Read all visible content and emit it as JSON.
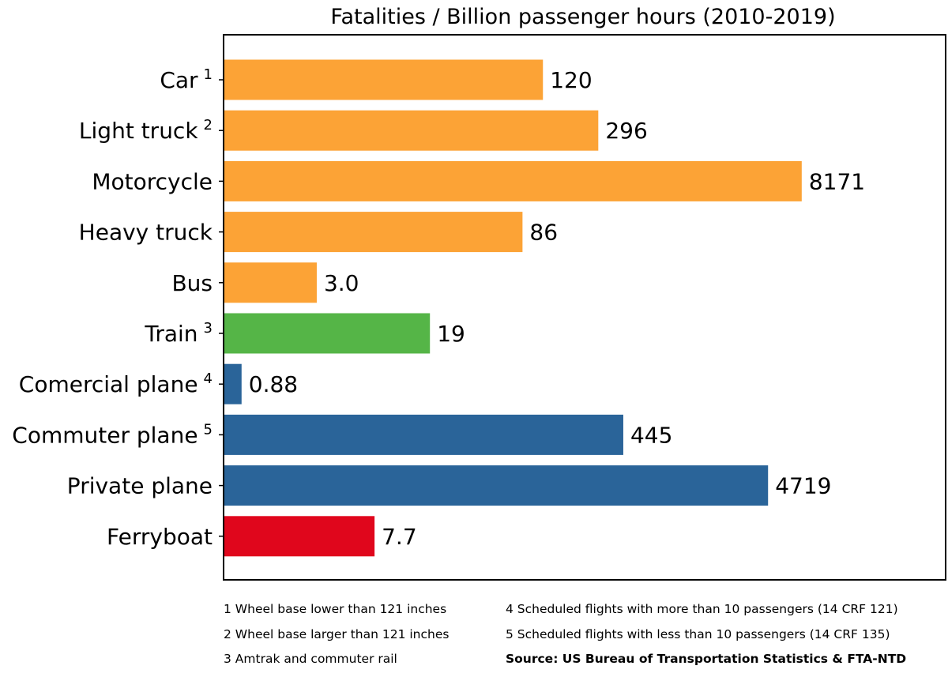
{
  "chart_data": {
    "type": "bar",
    "orientation": "horizontal",
    "title": "Fatalities / Billion passenger hours (2010-2019)",
    "xlabel": "",
    "ylabel": "",
    "x_scale": "log",
    "grid": false,
    "categories": [
      {
        "label": "Car",
        "sup": "1"
      },
      {
        "label": "Light truck",
        "sup": "2"
      },
      {
        "label": "Motorcycle",
        "sup": ""
      },
      {
        "label": "Heavy truck",
        "sup": ""
      },
      {
        "label": "Bus",
        "sup": ""
      },
      {
        "label": "Train",
        "sup": "3"
      },
      {
        "label": "Comercial plane",
        "sup": "4"
      },
      {
        "label": "Commuter plane",
        "sup": "5"
      },
      {
        "label": "Private plane",
        "sup": ""
      },
      {
        "label": "Ferryboat",
        "sup": ""
      }
    ],
    "values": [
      120,
      296,
      8171,
      86,
      3.0,
      19,
      0.88,
      445,
      4719,
      7.7
    ],
    "value_labels": [
      "120",
      "296",
      "8171",
      "86",
      "3.0",
      "19",
      "0.88",
      "445",
      "4719",
      "7.7"
    ],
    "bar_colors": [
      "#fca336",
      "#fca336",
      "#fca336",
      "#fca336",
      "#fca336",
      "#55b547",
      "#2a6499",
      "#2a6499",
      "#2a6499",
      "#e0061c"
    ]
  },
  "notes": {
    "n1": "1  Wheel base lower than 121 inches",
    "n2": "2  Wheel base larger than 121 inches",
    "n3": "3  Amtrak and commuter rail",
    "n4": "4  Scheduled flights with more than 10 passengers (14 CRF 121)",
    "n5": "5  Scheduled flights with less than 10 passengers (14 CRF 135)",
    "source": "Source: US Bureau of Transportation Statistics & FTA-NTD"
  }
}
